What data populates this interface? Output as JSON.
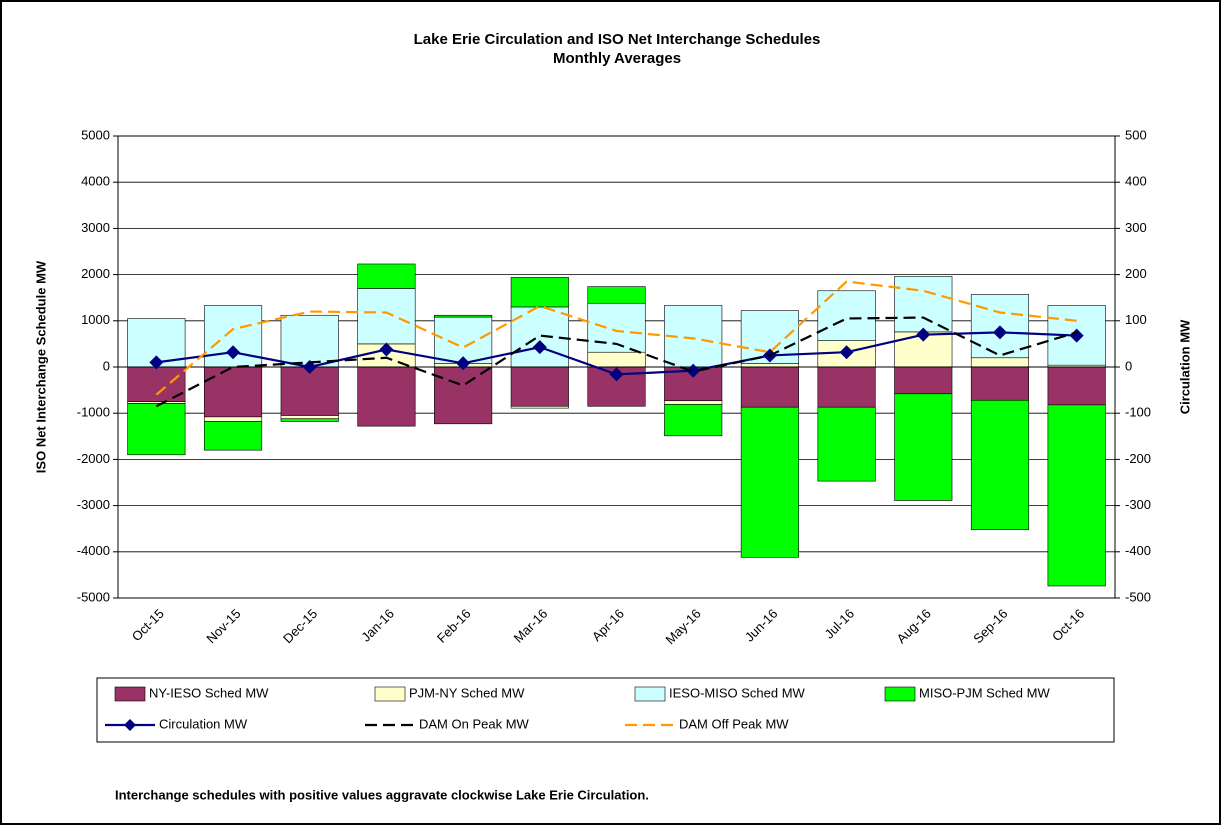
{
  "chart_data": {
    "type": "bar",
    "title": "Lake Erie Circulation and ISO Net Interchange Schedules",
    "subtitle": "Monthly Averages",
    "y_label": "ISO Net Interchange  Schedule MW",
    "y2_label": "Circulation MW",
    "note": "Interchange schedules with positive values aggravate clockwise Lake Erie Circulation.",
    "stacked": true,
    "categories": [
      "Oct-15",
      "Nov-15",
      "Dec-15",
      "Jan-16",
      "Feb-16",
      "Mar-16",
      "Apr-16",
      "May-16",
      "Jun-16",
      "Jul-16",
      "Aug-16",
      "Sep-16",
      "Oct-16"
    ],
    "ylim": [
      -5000,
      5000
    ],
    "yticks": [
      -5000,
      -4000,
      -3000,
      -2000,
      -1000,
      0,
      1000,
      2000,
      3000,
      4000,
      5000
    ],
    "y2lim": [
      -500,
      500
    ],
    "y2ticks": [
      -500,
      -400,
      -300,
      -200,
      -100,
      0,
      100,
      200,
      300,
      400,
      500
    ],
    "grid": true,
    "series": [
      {
        "name": "NY-IESO Sched MW",
        "type": "bar",
        "color": "#993366",
        "values": [
          -750,
          -1080,
          -1050,
          -1280,
          -1230,
          -850,
          -850,
          -730,
          -870,
          -870,
          -580,
          -720,
          -820
        ]
      },
      {
        "name": "PJM-NY Sched MW",
        "type": "bar",
        "color": "#ffffcc",
        "values": [
          -40,
          -100,
          -70,
          500,
          80,
          -40,
          320,
          -80,
          80,
          570,
          760,
          200,
          40
        ]
      },
      {
        "name": "IESO-MISO Sched MW",
        "type": "bar",
        "color": "#ccffff",
        "values": [
          1050,
          1330,
          1120,
          1200,
          1000,
          1300,
          1060,
          1330,
          1140,
          1080,
          1200,
          1370,
          1290
        ]
      },
      {
        "name": "MISO-PJM Sched MW",
        "type": "bar",
        "color": "#00ff00",
        "values": [
          -1110,
          -620,
          -60,
          530,
          40,
          640,
          360,
          -680,
          -3250,
          -1600,
          -2310,
          -2800,
          -3920
        ]
      },
      {
        "name": "Circulation MW",
        "type": "line",
        "axis": "y2",
        "color": "#000080",
        "marker": "diamond",
        "dashed": false,
        "values": [
          10,
          32,
          0,
          38,
          8,
          43,
          -16,
          -8,
          25,
          32,
          70,
          75,
          68
        ]
      },
      {
        "name": "DAM On Peak MW",
        "type": "line",
        "axis": "y2",
        "color": "#000000",
        "dashed": true,
        "values": [
          -85,
          0,
          10,
          20,
          -40,
          68,
          50,
          -10,
          25,
          105,
          107,
          25,
          75
        ]
      },
      {
        "name": "DAM Off Peak MW",
        "type": "line",
        "axis": "y2",
        "color": "#ff9900",
        "dashed": true,
        "values": [
          -60,
          82,
          120,
          118,
          42,
          132,
          78,
          62,
          32,
          185,
          165,
          118,
          100
        ]
      }
    ]
  }
}
